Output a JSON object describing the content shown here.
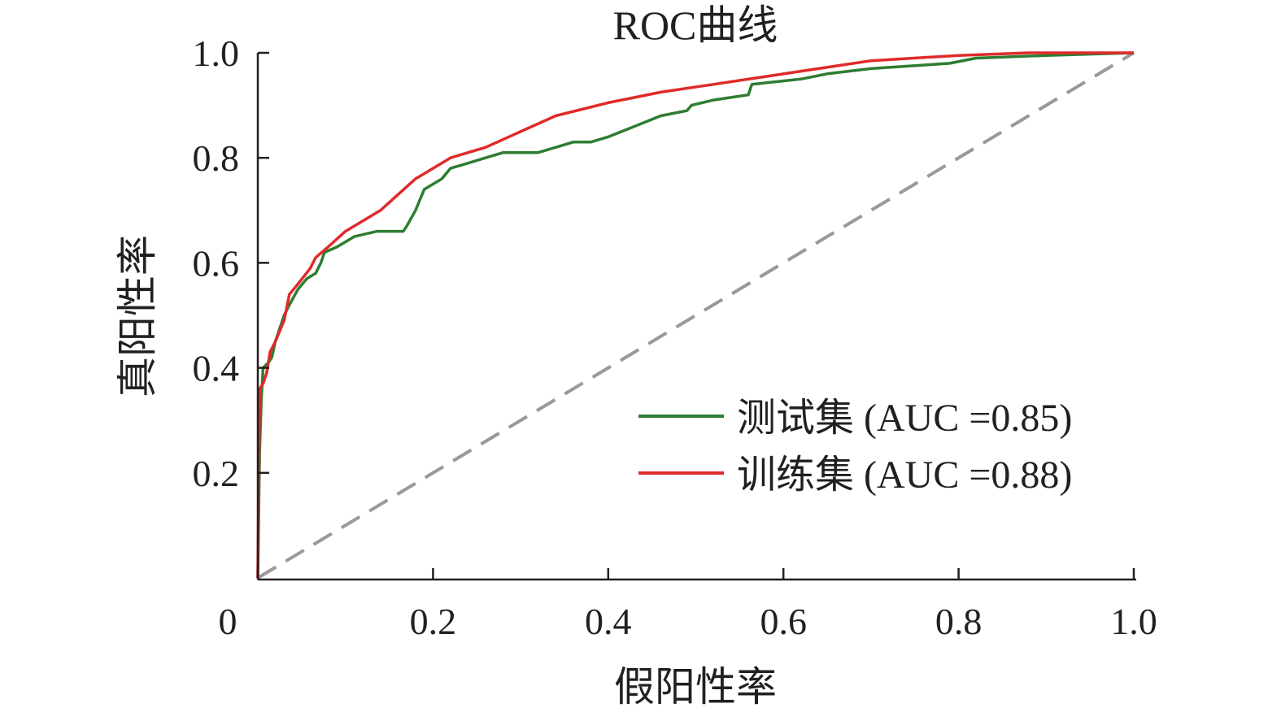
{
  "chart_data": {
    "type": "line",
    "title": "ROC曲线",
    "xlabel": "假阳性率",
    "ylabel": "真阳性率",
    "xlim": [
      0,
      1
    ],
    "ylim": [
      0,
      1
    ],
    "x_ticks": [
      {
        "value": 0,
        "label": "0"
      },
      {
        "value": 0.2,
        "label": "0.2"
      },
      {
        "value": 0.4,
        "label": "0.4"
      },
      {
        "value": 0.6,
        "label": "0.6"
      },
      {
        "value": 0.8,
        "label": "0.8"
      },
      {
        "value": 1.0,
        "label": "1.0"
      }
    ],
    "y_ticks": [
      {
        "value": 0.2,
        "label": "0.2"
      },
      {
        "value": 0.4,
        "label": "0.4"
      },
      {
        "value": 0.6,
        "label": "0.6"
      },
      {
        "value": 0.8,
        "label": "0.8"
      },
      {
        "value": 1.0,
        "label": "1.0"
      }
    ],
    "grid": false,
    "legend_position": "lower-right",
    "series": [
      {
        "name": "测试集 (AUC =0.85)",
        "color": "#2e7d32",
        "points": [
          [
            0,
            0
          ],
          [
            0.002,
            0.24
          ],
          [
            0.004,
            0.34
          ],
          [
            0.006,
            0.4
          ],
          [
            0.012,
            0.41
          ],
          [
            0.016,
            0.42
          ],
          [
            0.02,
            0.45
          ],
          [
            0.026,
            0.48
          ],
          [
            0.03,
            0.5
          ],
          [
            0.036,
            0.52
          ],
          [
            0.046,
            0.55
          ],
          [
            0.056,
            0.57
          ],
          [
            0.066,
            0.58
          ],
          [
            0.072,
            0.6
          ],
          [
            0.076,
            0.62
          ],
          [
            0.09,
            0.63
          ],
          [
            0.1,
            0.64
          ],
          [
            0.11,
            0.65
          ],
          [
            0.136,
            0.66
          ],
          [
            0.166,
            0.66
          ],
          [
            0.17,
            0.67
          ],
          [
            0.18,
            0.7
          ],
          [
            0.19,
            0.74
          ],
          [
            0.2,
            0.75
          ],
          [
            0.21,
            0.76
          ],
          [
            0.22,
            0.78
          ],
          [
            0.24,
            0.79
          ],
          [
            0.26,
            0.8
          ],
          [
            0.28,
            0.81
          ],
          [
            0.32,
            0.81
          ],
          [
            0.34,
            0.82
          ],
          [
            0.36,
            0.83
          ],
          [
            0.38,
            0.83
          ],
          [
            0.4,
            0.84
          ],
          [
            0.46,
            0.88
          ],
          [
            0.49,
            0.89
          ],
          [
            0.495,
            0.9
          ],
          [
            0.52,
            0.91
          ],
          [
            0.56,
            0.92
          ],
          [
            0.564,
            0.94
          ],
          [
            0.62,
            0.95
          ],
          [
            0.65,
            0.96
          ],
          [
            0.7,
            0.97
          ],
          [
            0.79,
            0.98
          ],
          [
            0.82,
            0.99
          ],
          [
            0.9,
            0.995
          ],
          [
            1.0,
            1.0
          ]
        ]
      },
      {
        "name": "训练集 (AUC =0.88)",
        "color": "#e02a2a",
        "points": [
          [
            0,
            0
          ],
          [
            0.002,
            0.36
          ],
          [
            0.006,
            0.37
          ],
          [
            0.01,
            0.39
          ],
          [
            0.014,
            0.43
          ],
          [
            0.02,
            0.45
          ],
          [
            0.03,
            0.49
          ],
          [
            0.036,
            0.54
          ],
          [
            0.046,
            0.56
          ],
          [
            0.06,
            0.59
          ],
          [
            0.066,
            0.61
          ],
          [
            0.08,
            0.63
          ],
          [
            0.1,
            0.66
          ],
          [
            0.12,
            0.68
          ],
          [
            0.14,
            0.7
          ],
          [
            0.16,
            0.73
          ],
          [
            0.18,
            0.76
          ],
          [
            0.2,
            0.78
          ],
          [
            0.22,
            0.8
          ],
          [
            0.24,
            0.81
          ],
          [
            0.26,
            0.82
          ],
          [
            0.3,
            0.85
          ],
          [
            0.34,
            0.88
          ],
          [
            0.4,
            0.905
          ],
          [
            0.46,
            0.925
          ],
          [
            0.52,
            0.94
          ],
          [
            0.58,
            0.955
          ],
          [
            0.64,
            0.97
          ],
          [
            0.7,
            0.985
          ],
          [
            0.8,
            0.995
          ],
          [
            0.88,
            1.0
          ],
          [
            1.0,
            1.0
          ]
        ]
      }
    ],
    "reference_line": {
      "color": "#999999",
      "style": "dashed",
      "points": [
        [
          0,
          0
        ],
        [
          1,
          1
        ]
      ]
    }
  }
}
